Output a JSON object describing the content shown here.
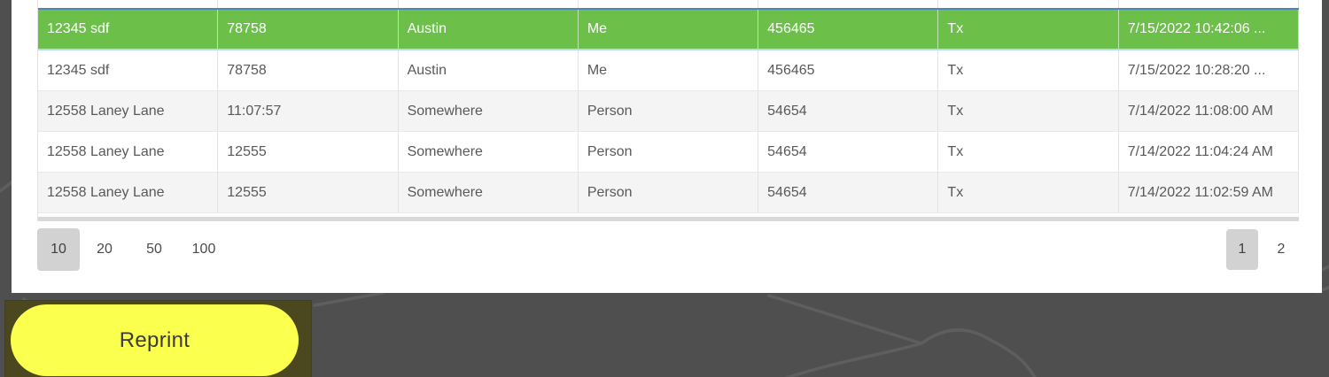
{
  "table": {
    "column_count": 7,
    "rows": [
      {
        "selected": true,
        "cells": [
          "12345 sdf",
          "78758",
          "Austin",
          "Me",
          "456465",
          "Tx",
          "7/15/2022 10:42:06 ..."
        ]
      },
      {
        "selected": false,
        "cells": [
          "12345 sdf",
          "78758",
          "Austin",
          "Me",
          "456465",
          "Tx",
          "7/15/2022 10:28:20 ..."
        ]
      },
      {
        "selected": false,
        "cells": [
          "12558 Laney Lane",
          "11:07:57",
          "Somewhere",
          "Person",
          "54654",
          "Tx",
          "7/14/2022 11:08:00 AM"
        ]
      },
      {
        "selected": false,
        "cells": [
          "12558 Laney Lane",
          "12555",
          "Somewhere",
          "Person",
          "54654",
          "Tx",
          "7/14/2022 11:04:24 AM"
        ]
      },
      {
        "selected": false,
        "cells": [
          "12558 Laney Lane",
          "12555",
          "Somewhere",
          "Person",
          "54654",
          "Tx",
          "7/14/2022 11:02:59 AM"
        ]
      }
    ]
  },
  "pagination": {
    "page_sizes": [
      "10",
      "20",
      "50",
      "100"
    ],
    "selected_page_size": "10",
    "pages": [
      "1",
      "2"
    ],
    "current_page": "1"
  },
  "actions": {
    "reprint_label": "Reprint"
  },
  "colors": {
    "selected_row_green": "#6cc04a",
    "selected_row_border_top": "#4c86b2",
    "selected_row_border_bottom": "#b9d8ef",
    "reprint_button_yellow": "#fbff4e",
    "reprint_highlight_olive": "#4b471f",
    "background_dark_gray": "#4f4f4f",
    "pager_selected_gray": "#d2d2d2"
  }
}
